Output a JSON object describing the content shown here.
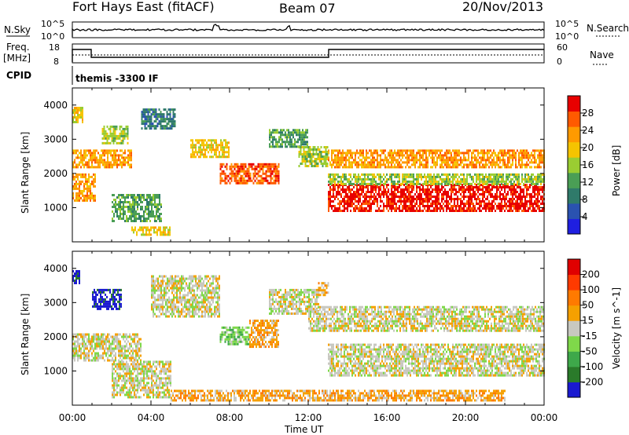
{
  "header": {
    "station": "Fort Hays East (fitACF)",
    "beam": "Beam 07",
    "date": "20/Nov/2013"
  },
  "top_panels": {
    "nsky_label": "N.Sky",
    "nsky_ticks": [
      "10^5",
      "10^0"
    ],
    "nsearch_label": "N.Search",
    "nsearch_ticks": [
      "10^5",
      "10^0"
    ],
    "freq_label": "Freq.",
    "freq_unit": "[MHz]",
    "freq_ticks": [
      "18",
      "8"
    ],
    "nave_label": "Nave",
    "nave_ticks": [
      "60",
      "0"
    ],
    "cpid_label": "CPID",
    "cpid_text": "themis -3300 IF"
  },
  "chart_data": [
    {
      "type": "heatmap",
      "name": "power-panel",
      "ylabel": "Slant Range [km]",
      "yticks": [
        1000,
        2000,
        3000,
        4000
      ],
      "ylim": [
        0,
        4500
      ],
      "xlim": [
        0,
        24
      ],
      "colorbar": {
        "label": "Power [dB]",
        "ticks": [
          "4",
          "8",
          "12",
          "16",
          "20",
          "24",
          "28"
        ],
        "colors": [
          "#1f1fe0",
          "#2a52b0",
          "#2f7a6a",
          "#4a9e55",
          "#9acd32",
          "#f5c400",
          "#ff9a00",
          "#ff5a00",
          "#e80000"
        ]
      },
      "regions": [
        {
          "t0": 0.0,
          "t1": 1.2,
          "r0": 1200,
          "r1": 2000,
          "level": 6
        },
        {
          "t0": 0.0,
          "t1": 3.0,
          "r0": 2200,
          "r1": 2700,
          "level": 6
        },
        {
          "t0": 1.5,
          "t1": 2.8,
          "r0": 2900,
          "r1": 3400,
          "level": 4
        },
        {
          "t0": 0.0,
          "t1": 0.5,
          "r0": 3500,
          "r1": 3950,
          "level": 5
        },
        {
          "t0": 2.0,
          "t1": 4.5,
          "r0": 600,
          "r1": 1400,
          "level": 3
        },
        {
          "t0": 3.0,
          "t1": 5.0,
          "r0": 200,
          "r1": 450,
          "level": 5
        },
        {
          "t0": 3.5,
          "t1": 5.2,
          "r0": 3300,
          "r1": 3900,
          "level": 2
        },
        {
          "t0": 6.0,
          "t1": 8.0,
          "r0": 2500,
          "r1": 3000,
          "level": 5
        },
        {
          "t0": 7.5,
          "t1": 10.5,
          "r0": 1700,
          "r1": 2300,
          "level": 7
        },
        {
          "t0": 10.0,
          "t1": 12.0,
          "r0": 2800,
          "r1": 3300,
          "level": 3
        },
        {
          "t0": 11.5,
          "t1": 13.0,
          "r0": 2200,
          "r1": 2800,
          "level": 4
        },
        {
          "t0": 13.0,
          "t1": 24.0,
          "r0": 2200,
          "r1": 2700,
          "level": 6
        },
        {
          "t0": 13.0,
          "t1": 24.0,
          "r0": 900,
          "r1": 1700,
          "level": 8
        },
        {
          "t0": 13.0,
          "t1": 24.0,
          "r0": 1700,
          "r1": 2000,
          "level": 4
        }
      ]
    },
    {
      "type": "heatmap",
      "name": "velocity-panel",
      "ylabel": "Slant Range [km]",
      "yticks": [
        1000,
        2000,
        3000,
        4000
      ],
      "ylim": [
        0,
        4500
      ],
      "xlim": [
        0,
        24
      ],
      "xticks": [
        "00:00",
        "04:00",
        "08:00",
        "12:00",
        "16:00",
        "20:00",
        "00:00"
      ],
      "xlabel": "Time UT",
      "colorbar": {
        "label": "Velocity [m s^-1]",
        "ticks": [
          "200",
          "100",
          "50",
          "15",
          "-15",
          "-50",
          "-100",
          "-200"
        ],
        "colors": [
          "#1a1ad0",
          "#2a7a2a",
          "#3ea84a",
          "#7fd84a",
          "#c8c8c0",
          "#f5a000",
          "#ff7a00",
          "#ff3a00",
          "#e00000"
        ]
      },
      "regions": [
        {
          "t0": 0.0,
          "t1": 3.5,
          "r0": 1300,
          "r1": 2100,
          "level": 4
        },
        {
          "t0": 1.0,
          "t1": 2.5,
          "r0": 2800,
          "r1": 3400,
          "level": 0
        },
        {
          "t0": 0.0,
          "t1": 0.4,
          "r0": 3600,
          "r1": 3950,
          "level": 0
        },
        {
          "t0": 2.0,
          "t1": 5.0,
          "r0": 200,
          "r1": 1300,
          "level": 4
        },
        {
          "t0": 4.0,
          "t1": 7.5,
          "r0": 2600,
          "r1": 3800,
          "level": 4
        },
        {
          "t0": 7.5,
          "t1": 9.0,
          "r0": 1800,
          "r1": 2300,
          "level": 3
        },
        {
          "t0": 9.0,
          "t1": 10.5,
          "r0": 1700,
          "r1": 2500,
          "level": 5
        },
        {
          "t0": 10.0,
          "t1": 12.5,
          "r0": 2700,
          "r1": 3400,
          "level": 4
        },
        {
          "t0": 12.0,
          "t1": 24.0,
          "r0": 2200,
          "r1": 2900,
          "level": 4
        },
        {
          "t0": 13.0,
          "t1": 24.0,
          "r0": 900,
          "r1": 1800,
          "level": 4
        },
        {
          "t0": 12.5,
          "t1": 13.0,
          "r0": 3200,
          "r1": 3600,
          "level": 5
        },
        {
          "t0": 5.0,
          "t1": 22.0,
          "r0": 150,
          "r1": 450,
          "level": 5
        }
      ]
    }
  ]
}
